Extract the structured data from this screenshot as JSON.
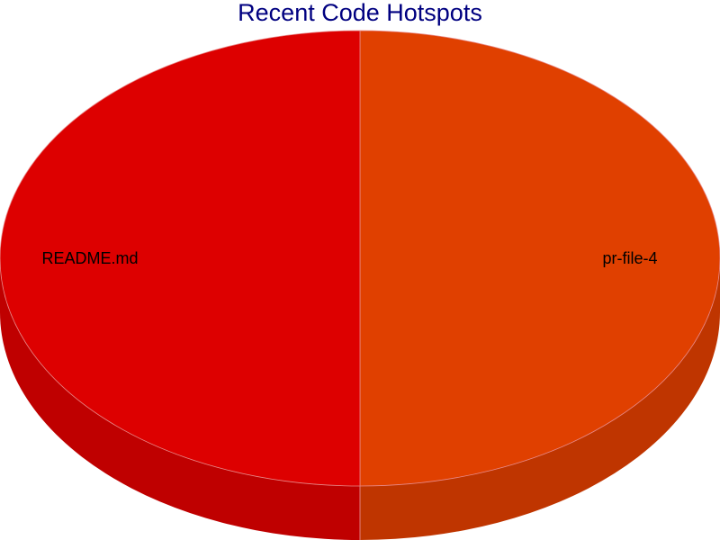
{
  "chart_data": {
    "type": "pie",
    "title": "Recent Code Hotspots",
    "slices": [
      {
        "label": "pr-file-4",
        "value": 50,
        "color": "#e04000",
        "side_color": "#bf3500"
      },
      {
        "label": "README.md",
        "value": 50,
        "color": "#dd0000",
        "side_color": "#bf0000"
      }
    ],
    "legend": "none",
    "style": "3d"
  }
}
